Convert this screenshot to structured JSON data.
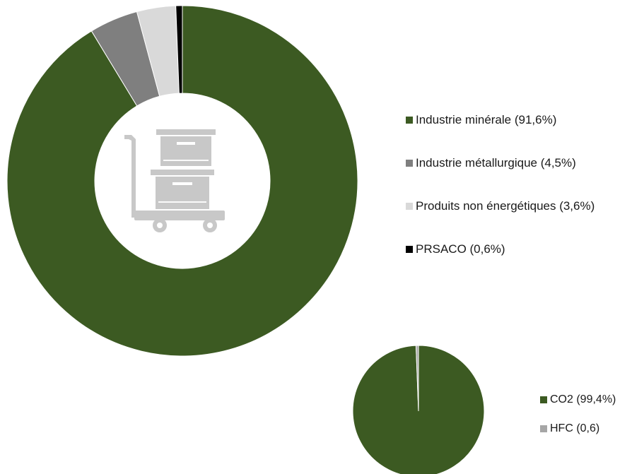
{
  "colors": {
    "dark_green": "#3c5a22",
    "grey": "#7f7f7f",
    "light_grey": "#d9d9d9",
    "black": "#000000",
    "mid_grey": "#a6a6a6",
    "icon_grey": "#c8c8c8"
  },
  "center_icon": "cart-with-boxes-icon",
  "chart_data": [
    {
      "type": "pie",
      "variant": "donut",
      "categories": [
        "Industrie minérale",
        "Industrie métallurgique",
        "Produits non énergétiques",
        "PRSACO"
      ],
      "values": [
        91.6,
        4.5,
        3.6,
        0.6
      ],
      "unit": "%",
      "colors": [
        "#3c5a22",
        "#7f7f7f",
        "#d9d9d9",
        "#000000"
      ],
      "legend": [
        {
          "label": "Industrie minérale (91,6%)",
          "color": "#3c5a22"
        },
        {
          "label": "Industrie métallurgique (4,5%)",
          "color": "#7f7f7f"
        },
        {
          "label": "Produits non énergétiques (3,6%)",
          "color": "#d9d9d9"
        },
        {
          "label": "PRSACO (0,6%)",
          "color": "#000000"
        }
      ],
      "legend_position": "right"
    },
    {
      "type": "pie",
      "categories": [
        "CO2",
        "HFC"
      ],
      "values": [
        99.4,
        0.6
      ],
      "unit": "%",
      "colors": [
        "#3c5a22",
        "#a6a6a6"
      ],
      "legend": [
        {
          "label": "CO2 (99,4%)",
          "color": "#3c5a22"
        },
        {
          "label": "HFC (0,6)",
          "color": "#a6a6a6"
        }
      ],
      "legend_position": "right"
    }
  ]
}
